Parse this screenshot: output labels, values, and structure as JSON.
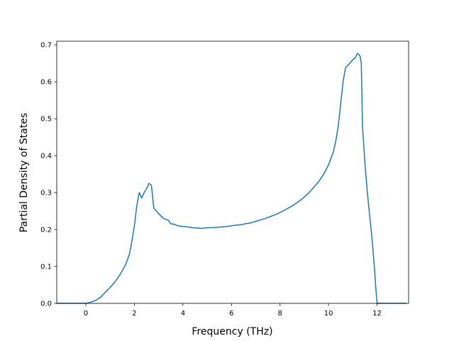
{
  "chart_data": {
    "type": "line",
    "title": "",
    "xlabel": "Frequency (THz)",
    "ylabel": "Partial Density of States",
    "xlim": [
      -1.2,
      13.3
    ],
    "ylim": [
      0.0,
      0.71
    ],
    "xticks": [
      0,
      2,
      4,
      6,
      8,
      10,
      12
    ],
    "xtick_labels": [
      "0",
      "2",
      "4",
      "6",
      "8",
      "10",
      "12"
    ],
    "yticks": [
      0.0,
      0.1,
      0.2,
      0.3,
      0.4,
      0.5,
      0.6,
      0.7
    ],
    "ytick_labels": [
      "0.0",
      "0.1",
      "0.2",
      "0.3",
      "0.4",
      "0.5",
      "0.6",
      "0.7"
    ],
    "grid": false,
    "legend": "none",
    "series": [
      {
        "color": "#1f77b4",
        "x": [
          -1.2,
          -0.5,
          0.0,
          0.2,
          0.4,
          0.6,
          0.8,
          1.0,
          1.2,
          1.4,
          1.6,
          1.7,
          1.8,
          1.9,
          2.0,
          2.1,
          2.2,
          2.3,
          2.4,
          2.5,
          2.6,
          2.7,
          2.8,
          3.0,
          3.2,
          3.4,
          3.5,
          3.6,
          3.8,
          4.0,
          4.2,
          4.4,
          4.6,
          4.8,
          5.0,
          5.2,
          5.4,
          5.6,
          5.8,
          6.0,
          6.2,
          6.4,
          6.6,
          6.8,
          7.0,
          7.2,
          7.4,
          7.6,
          7.8,
          8.0,
          8.2,
          8.4,
          8.6,
          8.8,
          9.0,
          9.2,
          9.4,
          9.6,
          9.8,
          10.0,
          10.2,
          10.3,
          10.4,
          10.5,
          10.6,
          10.7,
          10.8,
          10.9,
          11.0,
          11.1,
          11.15,
          11.2,
          11.3,
          11.35,
          11.4,
          11.5,
          11.6,
          11.7,
          11.8,
          11.9,
          11.95,
          12.0,
          12.1,
          13.2
        ],
        "y": [
          0.0,
          0.0,
          0.0,
          0.003,
          0.008,
          0.016,
          0.03,
          0.043,
          0.058,
          0.077,
          0.1,
          0.115,
          0.135,
          0.17,
          0.21,
          0.265,
          0.3,
          0.285,
          0.3,
          0.31,
          0.325,
          0.32,
          0.258,
          0.243,
          0.23,
          0.225,
          0.215,
          0.215,
          0.21,
          0.208,
          0.207,
          0.205,
          0.204,
          0.203,
          0.205,
          0.205,
          0.206,
          0.207,
          0.208,
          0.21,
          0.212,
          0.213,
          0.216,
          0.218,
          0.222,
          0.226,
          0.23,
          0.235,
          0.24,
          0.246,
          0.253,
          0.26,
          0.268,
          0.277,
          0.288,
          0.3,
          0.315,
          0.33,
          0.35,
          0.375,
          0.41,
          0.44,
          0.48,
          0.54,
          0.6,
          0.638,
          0.645,
          0.652,
          0.66,
          0.665,
          0.672,
          0.677,
          0.67,
          0.65,
          0.48,
          0.38,
          0.3,
          0.235,
          0.17,
          0.09,
          0.04,
          0.0,
          0.0,
          0.0
        ]
      }
    ]
  }
}
